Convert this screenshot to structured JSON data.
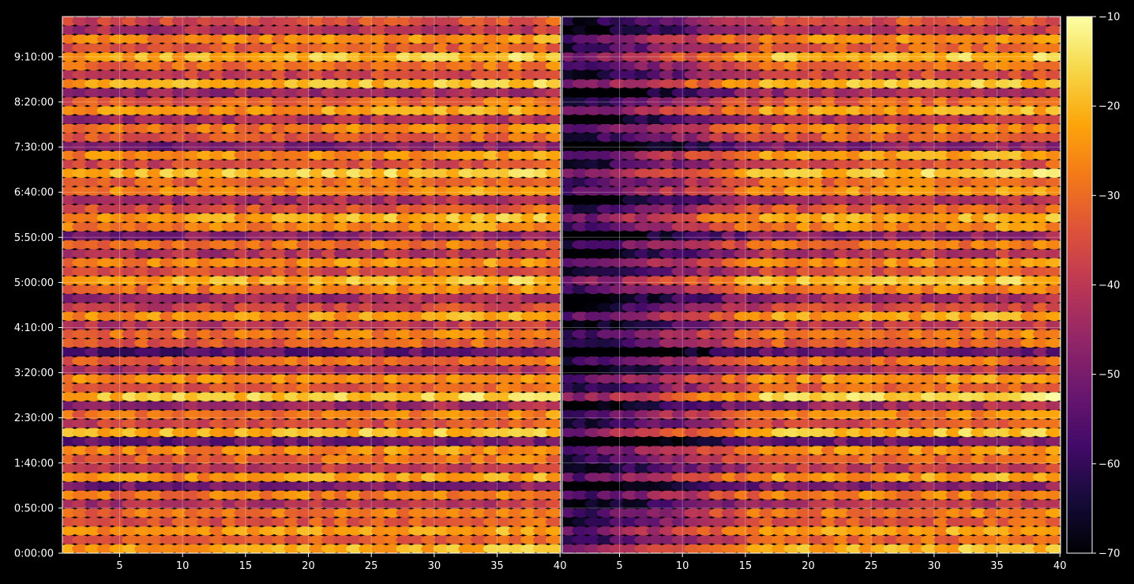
{
  "chart_data": {
    "type": "heatmap",
    "title": "",
    "xlabel": "",
    "ylabel": "",
    "panels": [
      {
        "name": "",
        "xlim": [
          1,
          40
        ],
        "xticks": [
          5,
          10,
          15,
          20,
          25,
          30,
          35,
          40
        ]
      },
      {
        "name": "",
        "xlim": [
          1,
          40
        ],
        "xticks": [
          5,
          10,
          15,
          20,
          25,
          30,
          35,
          40
        ]
      }
    ],
    "y_ticks": [
      "0:00:00",
      "0:50:00",
      "1:40:00",
      "2:30:00",
      "3:20:00",
      "4:10:00",
      "5:00:00",
      "5:50:00",
      "6:40:00",
      "7:30:00",
      "8:20:00",
      "9:10:00"
    ],
    "y_range": [
      "0:00:00",
      "9:55:00"
    ],
    "grid": true,
    "colormap": "inferno",
    "colorbar": {
      "min": -70,
      "max": -10,
      "ticks": [
        "−70",
        "−60",
        "−50",
        "−40",
        "−30",
        "−20",
        "−10"
      ]
    },
    "rows": 60,
    "columns_per_panel": 40,
    "row_profile_first_panel": [
      -24,
      -34,
      -26,
      -36,
      -31,
      -44,
      -30,
      -52,
      -26,
      -42,
      -33,
      -28,
      -55,
      -22,
      -38,
      -30,
      -48,
      -20,
      -35,
      -27,
      -45,
      -33,
      -57,
      -35,
      -31,
      -42,
      -26,
      -40,
      -47,
      -30,
      -23,
      -38,
      -28,
      -44,
      -32,
      -50,
      -29,
      -24,
      -36,
      -46,
      -28,
      -33,
      -21,
      -38,
      -27,
      -52,
      -35,
      -30,
      -45,
      -26,
      -34,
      -48,
      -23,
      -40,
      -32,
      -22,
      -35,
      -28,
      -44,
      -38
    ],
    "panel2_offset_min": -28,
    "panel2_recovery_column": 15
  }
}
